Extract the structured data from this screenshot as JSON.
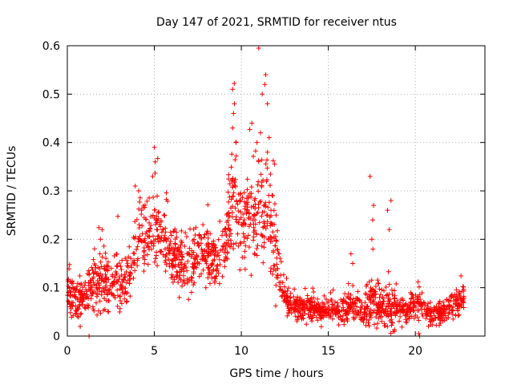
{
  "chart_data": {
    "type": "scatter",
    "title": "Day 147 of 2021, SRMTID for receiver ntus",
    "xlabel": "GPS time / hours",
    "ylabel": "SRMTID / TECUs",
    "xlim": [
      0,
      24
    ],
    "ylim": [
      0,
      0.6
    ],
    "xticks": [
      0,
      5,
      10,
      15,
      20
    ],
    "xtick_labels": [
      "0",
      "5",
      "10",
      "15",
      "20"
    ],
    "yticks": [
      0,
      0.1,
      0.2,
      0.3,
      0.4,
      0.5,
      0.6
    ],
    "ytick_labels": [
      "0",
      "0.1",
      "0.2",
      "0.3",
      "0.4",
      "0.5",
      "0.6"
    ],
    "grid": true,
    "marker": "+",
    "series": [
      {
        "name": "SRMTID",
        "color": "#ff0000",
        "envelope_hours": [
          0,
          0.5,
          1,
          1.5,
          2,
          2.5,
          3,
          3.5,
          4,
          4.5,
          5,
          5.5,
          6,
          6.5,
          7,
          7.5,
          8,
          8.5,
          9,
          9.5,
          10,
          10.5,
          11,
          11.5,
          12,
          12.5,
          13,
          13.5,
          14,
          14.5,
          15,
          15.5,
          16,
          16.5,
          17,
          17.5,
          18,
          18.5,
          19,
          19.5,
          20,
          20.5,
          21,
          21.5,
          22,
          22.5,
          22.8
        ],
        "envelope_center": [
          0.09,
          0.07,
          0.09,
          0.1,
          0.12,
          0.1,
          0.1,
          0.12,
          0.2,
          0.21,
          0.22,
          0.2,
          0.16,
          0.15,
          0.14,
          0.17,
          0.16,
          0.15,
          0.17,
          0.28,
          0.22,
          0.24,
          0.25,
          0.27,
          0.16,
          0.08,
          0.06,
          0.06,
          0.06,
          0.05,
          0.05,
          0.05,
          0.055,
          0.06,
          0.05,
          0.07,
          0.06,
          0.06,
          0.06,
          0.05,
          0.07,
          0.06,
          0.04,
          0.05,
          0.06,
          0.07,
          0.09
        ],
        "envelope_spread": [
          0.035,
          0.03,
          0.03,
          0.04,
          0.05,
          0.04,
          0.04,
          0.04,
          0.06,
          0.05,
          0.06,
          0.05,
          0.04,
          0.04,
          0.04,
          0.04,
          0.04,
          0.04,
          0.05,
          0.07,
          0.07,
          0.07,
          0.08,
          0.08,
          0.05,
          0.02,
          0.02,
          0.02,
          0.02,
          0.015,
          0.015,
          0.015,
          0.02,
          0.02,
          0.02,
          0.04,
          0.025,
          0.04,
          0.025,
          0.02,
          0.02,
          0.02,
          0.015,
          0.015,
          0.02,
          0.02,
          0.02
        ],
        "outliers": [
          {
            "x": 11.0,
            "y": 0.595
          },
          {
            "x": 11.4,
            "y": 0.54
          },
          {
            "x": 11.35,
            "y": 0.52
          },
          {
            "x": 11.2,
            "y": 0.5
          },
          {
            "x": 11.5,
            "y": 0.48
          },
          {
            "x": 9.5,
            "y": 0.51
          },
          {
            "x": 9.6,
            "y": 0.48
          },
          {
            "x": 9.55,
            "y": 0.46
          },
          {
            "x": 9.5,
            "y": 0.43
          },
          {
            "x": 9.7,
            "y": 0.4
          },
          {
            "x": 10.6,
            "y": 0.44
          },
          {
            "x": 11.1,
            "y": 0.42
          },
          {
            "x": 11.6,
            "y": 0.41
          },
          {
            "x": 11.5,
            "y": 0.38
          },
          {
            "x": 10.9,
            "y": 0.4
          },
          {
            "x": 5.0,
            "y": 0.39
          },
          {
            "x": 5.05,
            "y": 0.36
          },
          {
            "x": 4.9,
            "y": 0.33
          },
          {
            "x": 3.9,
            "y": 0.31
          },
          {
            "x": 17.4,
            "y": 0.33
          },
          {
            "x": 17.6,
            "y": 0.27
          },
          {
            "x": 17.55,
            "y": 0.24
          },
          {
            "x": 18.6,
            "y": 0.28
          },
          {
            "x": 18.4,
            "y": 0.26
          },
          {
            "x": 18.5,
            "y": 0.22
          },
          {
            "x": 17.5,
            "y": 0.2
          },
          {
            "x": 16.3,
            "y": 0.17
          },
          {
            "x": 16.4,
            "y": 0.15
          },
          {
            "x": 20.2,
            "y": 0.005
          },
          {
            "x": 1.25,
            "y": 0.0
          },
          {
            "x": 20.25,
            "y": 0.0
          },
          {
            "x": 2.0,
            "y": 0.22
          },
          {
            "x": 1.9,
            "y": 0.2
          },
          {
            "x": 4.1,
            "y": 0.3
          },
          {
            "x": 12.0,
            "y": 0.25
          },
          {
            "x": 11.8,
            "y": 0.29
          }
        ]
      }
    ]
  }
}
